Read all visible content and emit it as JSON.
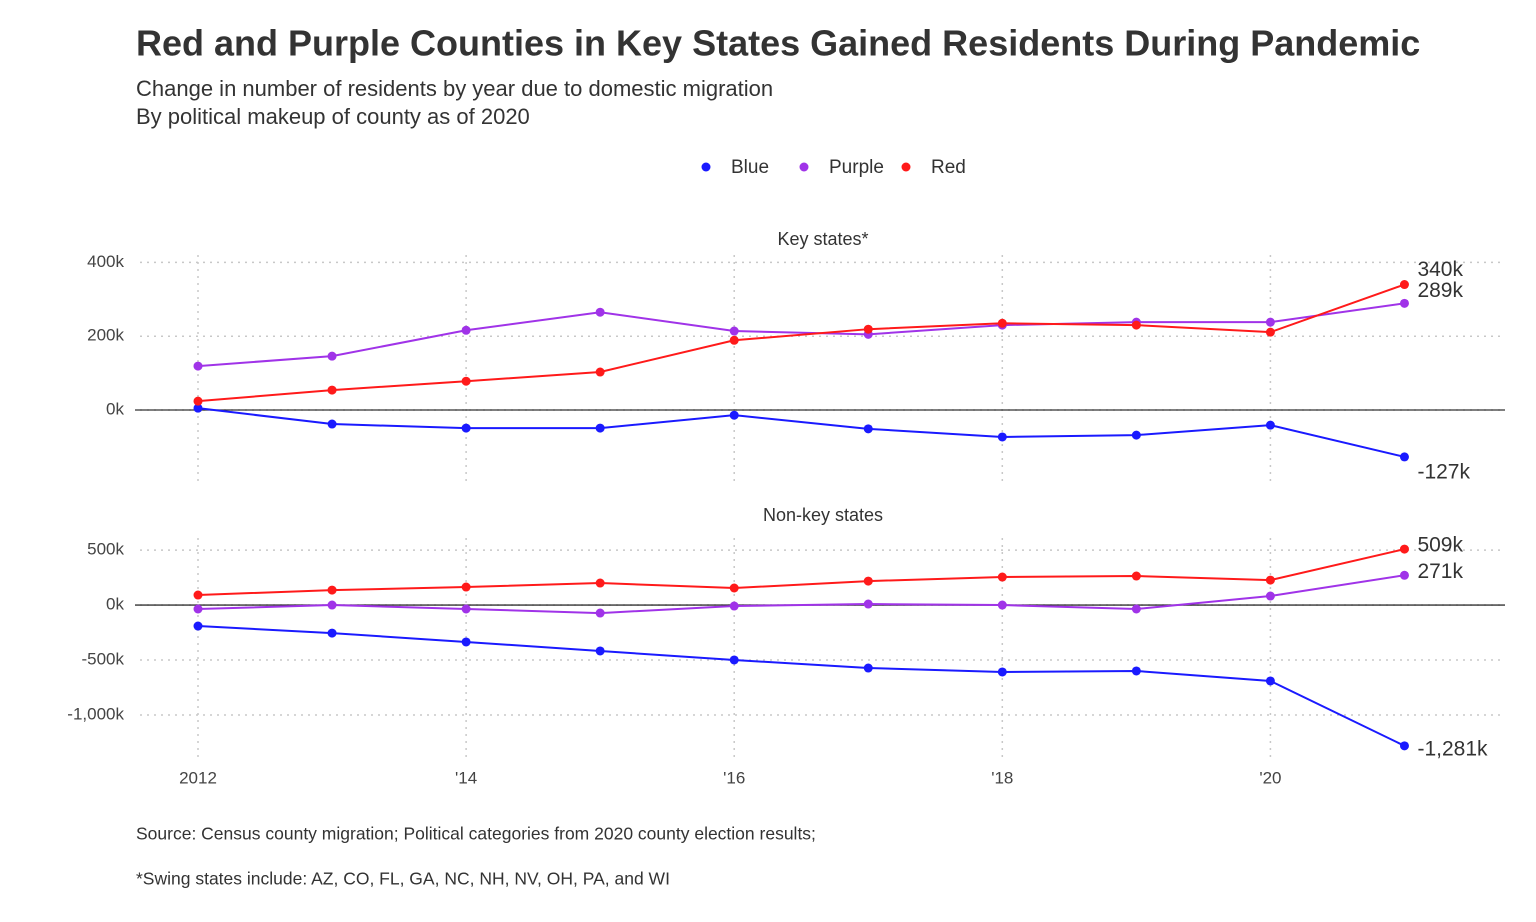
{
  "title": "Red and Purple Counties in Key States Gained Residents During Pandemic",
  "subtitle": [
    "Change in number of residents by year due to domestic migration",
    "By political makeup of county as of 2020"
  ],
  "source": "Source: Census county migration; Political categories from 2020 county election results;",
  "note": "*Swing states include: AZ, CO, FL, GA, NC, NH, NV, OH, PA, and WI",
  "chart_data": [
    {
      "type": "line",
      "title": "Key states*",
      "x": [
        2012,
        2013,
        2014,
        2015,
        2016,
        2017,
        2018,
        2019,
        2020,
        2021
      ],
      "xlim": [
        2011.53,
        2021.75
      ],
      "xticks": [
        2012,
        2014,
        2016,
        2018,
        2020
      ],
      "ylim": [
        -195000,
        420000
      ],
      "yticks": [
        {
          "value": 0,
          "label": "0k"
        },
        {
          "value": 200000,
          "label": "200k"
        },
        {
          "value": 400000,
          "label": "400k"
        }
      ],
      "grid": true,
      "series": [
        {
          "name": "Blue",
          "color": "#1a1aff",
          "values": [
            5000,
            -38000,
            -49000,
            -49000,
            -14000,
            -51000,
            -73000,
            -68000,
            -41000,
            -127000
          ],
          "value_labels": [
            null,
            null,
            null,
            null,
            null,
            null,
            null,
            null,
            null,
            "-127k"
          ]
        },
        {
          "name": "Purple",
          "color": "#a033e8",
          "values": [
            119000,
            146000,
            216000,
            265000,
            214000,
            205000,
            230000,
            238000,
            238000,
            289000
          ],
          "value_labels": [
            null,
            null,
            null,
            null,
            null,
            null,
            null,
            null,
            null,
            "289k"
          ]
        },
        {
          "name": "Red",
          "color": "#ff1a1a",
          "values": [
            24000,
            54000,
            78000,
            103000,
            189000,
            219000,
            235000,
            230000,
            211000,
            340000
          ],
          "value_labels": [
            null,
            null,
            null,
            null,
            null,
            null,
            null,
            null,
            null,
            "340k"
          ]
        }
      ]
    },
    {
      "type": "line",
      "title": "Non-key states",
      "x": [
        2012,
        2013,
        2014,
        2015,
        2016,
        2017,
        2018,
        2019,
        2020,
        2021
      ],
      "xlim": [
        2011.53,
        2021.75
      ],
      "xticks": [
        2012,
        {
          "value": 2014,
          "label": "'14"
        },
        {
          "value": 2016,
          "label": "'16"
        },
        {
          "value": 2018,
          "label": "'18"
        },
        {
          "value": 2020,
          "label": "'20"
        }
      ],
      "ylim": [
        -1410000,
        610000
      ],
      "yticks": [
        {
          "value": -1000000,
          "label": "-1,000k"
        },
        {
          "value": -500000,
          "label": "-500k"
        },
        {
          "value": 0,
          "label": "0k"
        },
        {
          "value": 500000,
          "label": "500k"
        }
      ],
      "grid": true,
      "series": [
        {
          "name": "Blue",
          "color": "#1a1aff",
          "values": [
            -191000,
            -255000,
            -336000,
            -418000,
            -500000,
            -573000,
            -609000,
            -600000,
            -691000,
            -1281000
          ],
          "value_labels": [
            null,
            null,
            null,
            null,
            null,
            null,
            null,
            null,
            null,
            "-1,281k"
          ]
        },
        {
          "name": "Purple",
          "color": "#a033e8",
          "values": [
            -36000,
            0,
            -36000,
            -73000,
            -9000,
            9000,
            0,
            -36000,
            82000,
            271000
          ],
          "value_labels": [
            null,
            null,
            null,
            null,
            null,
            null,
            null,
            null,
            null,
            "271k"
          ]
        },
        {
          "name": "Red",
          "color": "#ff1a1a",
          "values": [
            91000,
            136000,
            164000,
            200000,
            155000,
            218000,
            255000,
            264000,
            227000,
            509000
          ],
          "value_labels": [
            null,
            null,
            null,
            null,
            null,
            null,
            null,
            null,
            null,
            "509k"
          ]
        }
      ]
    }
  ]
}
